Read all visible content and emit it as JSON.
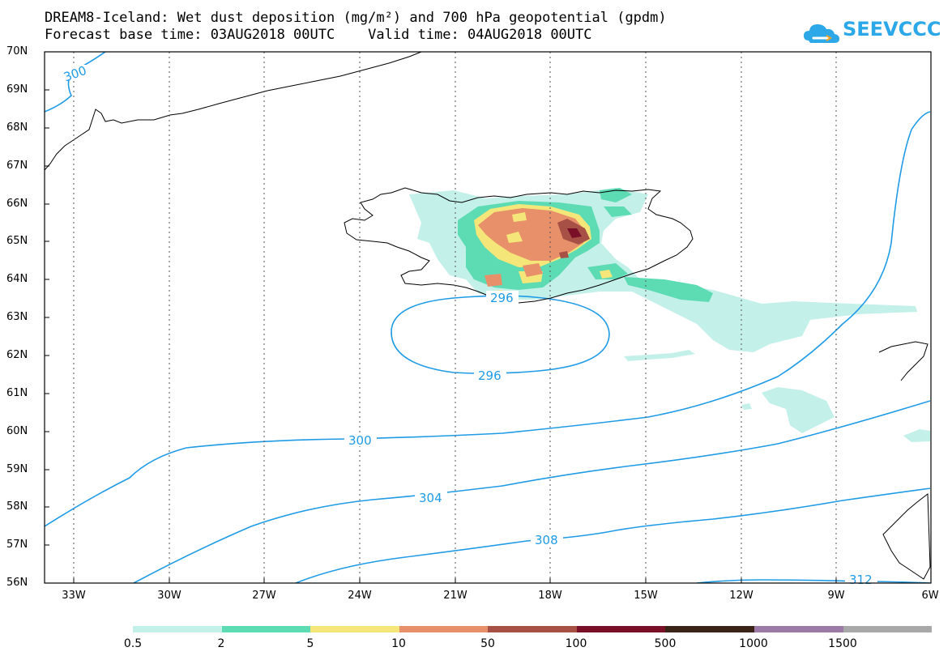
{
  "title_line1": "DREAM8-Iceland: Wet dust deposition (mg/m²) and 700 hPa geopotential (gpdm)",
  "title_line2": "Forecast base time: 03AUG2018 00UTC    Valid time: 04AUG2018 00UTC",
  "logo_text": "SEEVCCC",
  "logo_color": "#2ca8e8",
  "lat_labels": [
    "70N",
    "69N",
    "68N",
    "67N",
    "66N",
    "65N",
    "64N",
    "63N",
    "62N",
    "61N",
    "60N",
    "59N",
    "58N",
    "57N",
    "56N"
  ],
  "lon_labels": [
    "33W",
    "30W",
    "27W",
    "24W",
    "21W",
    "18W",
    "15W",
    "12W",
    "9W",
    "6W"
  ],
  "contour_labels": [
    "300",
    "296",
    "296",
    "300",
    "304",
    "308",
    "312"
  ],
  "contour_color": "#1f9be6",
  "legend": {
    "labels": [
      "0.5",
      "2",
      "5",
      "10",
      "50",
      "100",
      "500",
      "1000",
      "1500"
    ],
    "colors": [
      "#c4f0ea",
      "#5ddcb4",
      "#f5e67a",
      "#e8906a",
      "#a65046",
      "#7a0f28",
      "#3a2418",
      "#9b7aa8",
      "#a8a8a8"
    ]
  }
}
